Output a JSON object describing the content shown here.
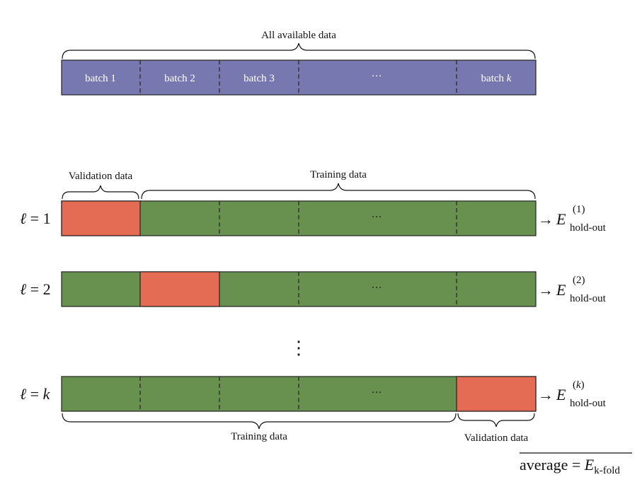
{
  "colors": {
    "all_data": "#7878b0",
    "training": "#689150",
    "validation": "#e46c55",
    "outline": "#222222",
    "brace": "#111111"
  },
  "top": {
    "title": "All available data",
    "batches": [
      "batch 1",
      "batch 2",
      "batch 3",
      "···",
      "batch"
    ],
    "batch_k_var": "k"
  },
  "rows": [
    {
      "label_var": "ℓ",
      "label_eq": " = ",
      "label_rhs": "1",
      "validation_index": 0,
      "ellipsis": "···",
      "result_E": "E",
      "result_sup": "(1)",
      "result_sub": "hold-out",
      "arrow": "→"
    },
    {
      "label_var": "ℓ",
      "label_eq": " = ",
      "label_rhs": "2",
      "validation_index": 1,
      "ellipsis": "···",
      "result_E": "E",
      "result_sup": "(2)",
      "result_sub": "hold-out",
      "arrow": "→"
    },
    {
      "label_var": "ℓ",
      "label_eq": " = ",
      "label_rhs": "k",
      "validation_index": 4,
      "ellipsis": "···",
      "result_E": "E",
      "result_sup": "(k)",
      "result_sub": "hold-out",
      "arrow": "→"
    }
  ],
  "row1_braces": {
    "validation": "Validation data",
    "training": "Training data"
  },
  "rowk_braces": {
    "training": "Training data",
    "validation": "Validation data"
  },
  "vdots": "⋮",
  "average": {
    "text": "average = ",
    "E": "E",
    "sub": "k-fold"
  }
}
